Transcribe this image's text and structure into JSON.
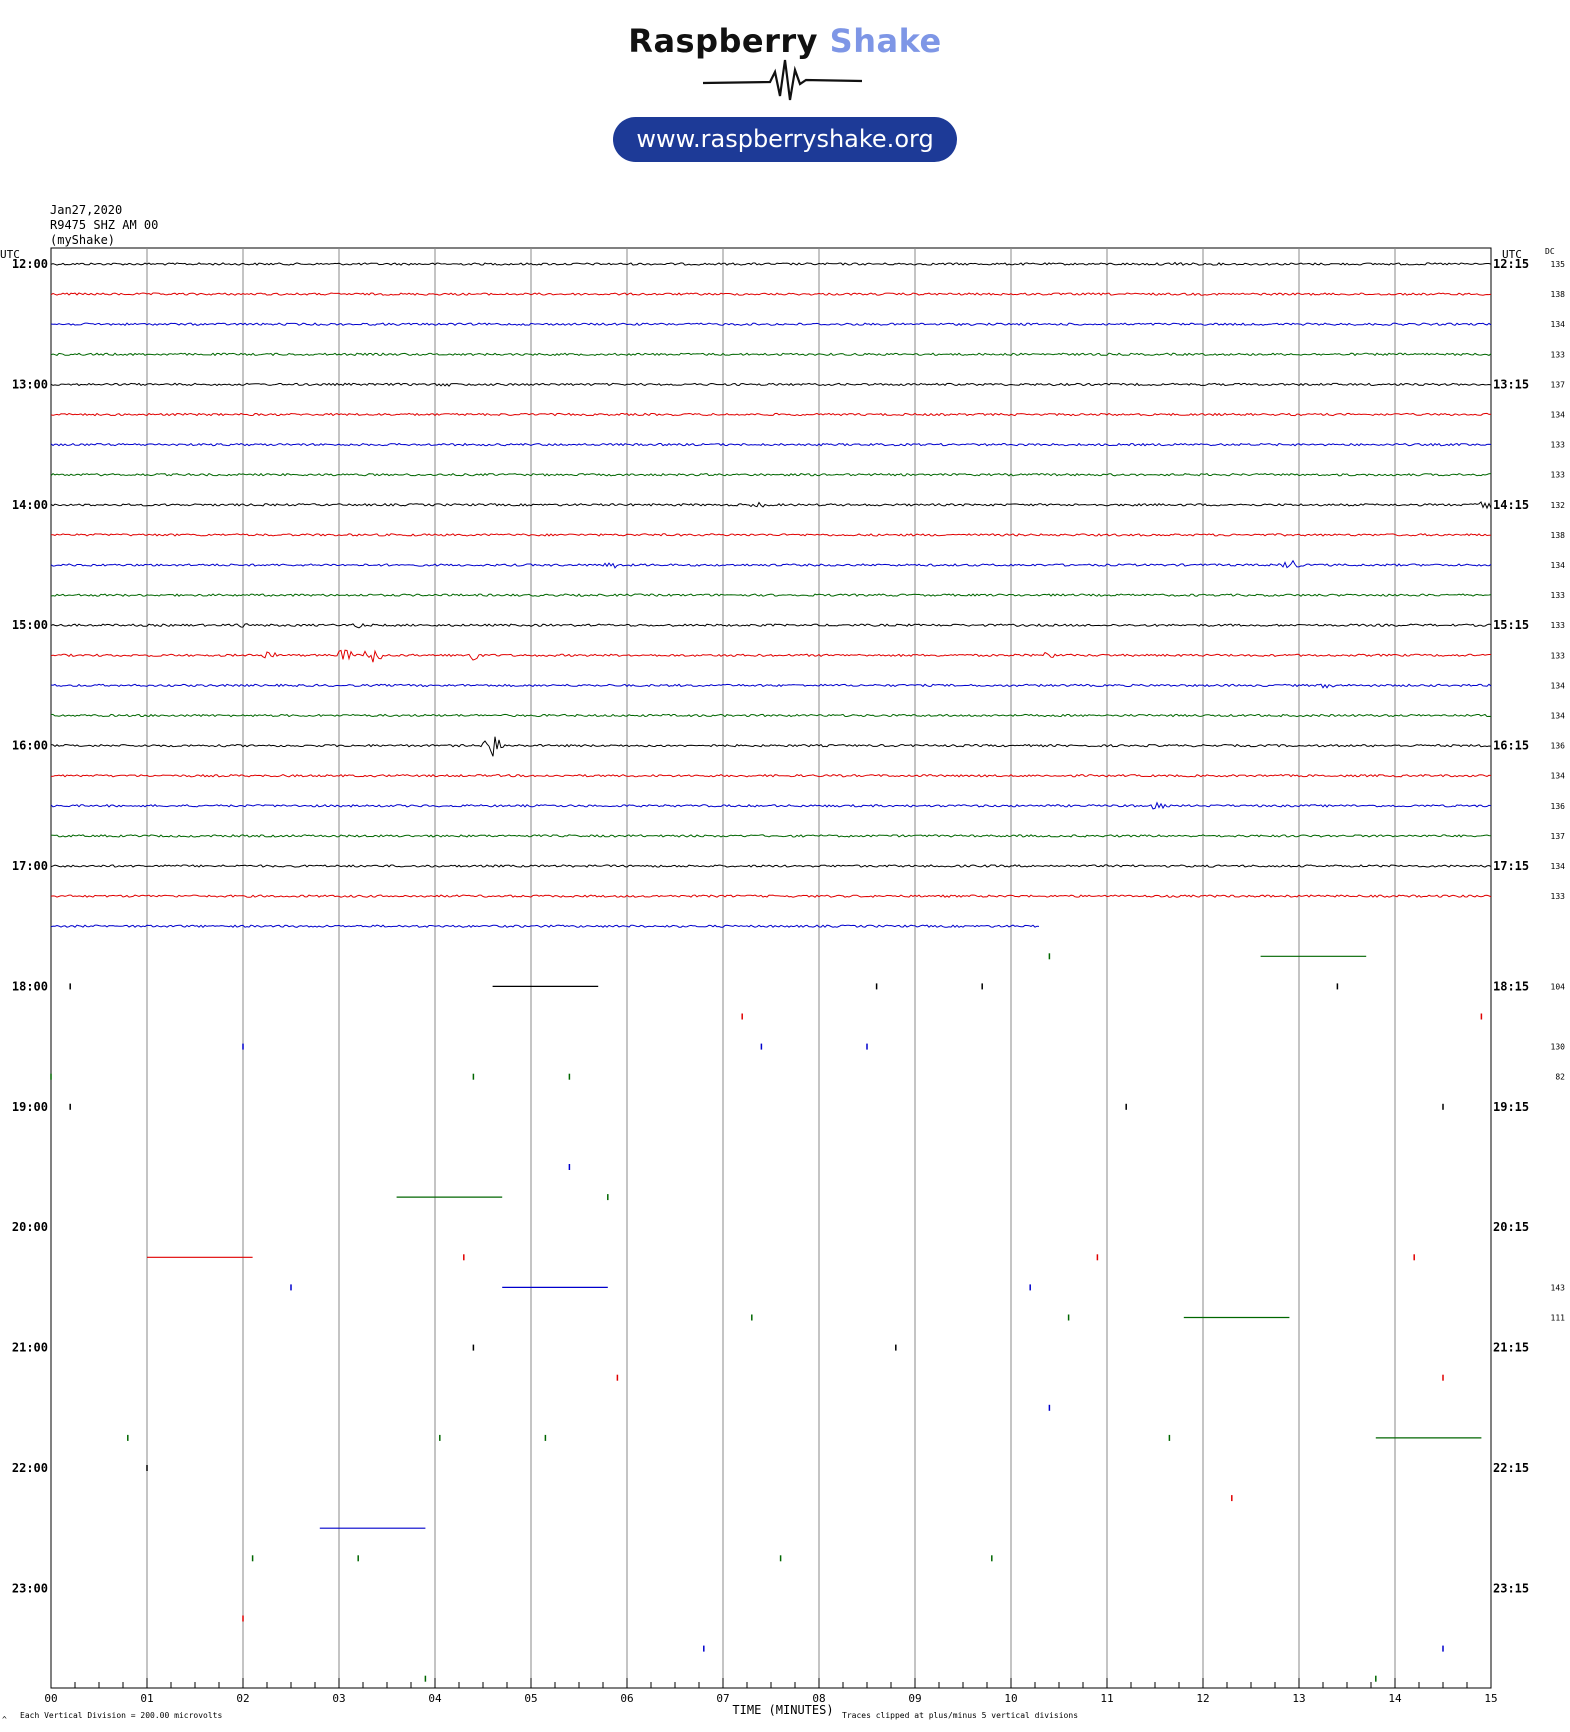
{
  "brand": {
    "name_part1": "Raspberry",
    "name_part2": "Shake",
    "url": "www.raspberryshake.org",
    "colors": {
      "dark": "#111111",
      "accent": "#7e96e6",
      "pill": "#1d3a97"
    }
  },
  "station": {
    "date": "Jan27,2020",
    "channel": "R9475 SHZ AM 00",
    "source": "(myShake)"
  },
  "chart_data": {
    "type": "line",
    "title": "",
    "xlabel": "TIME (MINUTES)",
    "ylabel": "",
    "x_ticks": [
      "00",
      "01",
      "02",
      "03",
      "04",
      "05",
      "06",
      "07",
      "08",
      "09",
      "10",
      "11",
      "12",
      "13",
      "14",
      "15"
    ],
    "xlim": [
      0,
      15
    ],
    "left_axis_title": "UTC",
    "right_axis_title": "UTC",
    "dc_title": "DC",
    "left_hour_labels": [
      "12:00",
      "13:00",
      "14:00",
      "15:00",
      "16:00",
      "17:00",
      "18:00",
      "19:00",
      "20:00",
      "21:00",
      "22:00",
      "23:00"
    ],
    "right_hour_labels": [
      "12:15",
      "13:15",
      "14:15",
      "15:15",
      "16:15",
      "17:15",
      "18:15",
      "19:15",
      "20:15",
      "21:15",
      "22:15",
      "23:15"
    ],
    "row_colors": [
      "#000000",
      "#e00000",
      "#0000cc",
      "#006600"
    ],
    "dc_values": [
      "135",
      "138",
      "134",
      "133",
      "137",
      "134",
      "133",
      "133",
      "132",
      "138",
      "134",
      "133",
      "133",
      "133",
      "134",
      "134",
      "136",
      "134",
      "136",
      "137",
      "134",
      "133",
      "",
      "",
      "104",
      "",
      "130",
      "82",
      "",
      "",
      "",
      "",
      "",
      "",
      "143",
      "111",
      "",
      "",
      "",
      "",
      "",
      ""
    ],
    "traces_complete_rows": 22,
    "partial_row_end_minute": 10.3,
    "events": [
      {
        "row": 0,
        "t": 11.75,
        "amp": 3
      },
      {
        "row": 4,
        "t": 4.1,
        "amp": 2
      },
      {
        "row": 8,
        "t": 7.35,
        "amp": 3
      },
      {
        "row": 8,
        "t": 14.95,
        "amp": 8
      },
      {
        "row": 10,
        "t": 5.85,
        "amp": 4
      },
      {
        "row": 10,
        "t": 12.9,
        "amp": 7
      },
      {
        "row": 12,
        "t": 2.05,
        "amp": 4
      },
      {
        "row": 12,
        "t": 3.2,
        "amp": 3
      },
      {
        "row": 13,
        "t": 2.25,
        "amp": 5
      },
      {
        "row": 13,
        "t": 3.05,
        "amp": 8
      },
      {
        "row": 13,
        "t": 3.35,
        "amp": 14
      },
      {
        "row": 13,
        "t": 4.35,
        "amp": 15
      },
      {
        "row": 13,
        "t": 10.4,
        "amp": 4
      },
      {
        "row": 14,
        "t": 13.3,
        "amp": 3
      },
      {
        "row": 16,
        "t": 4.6,
        "amp": 20
      },
      {
        "row": 18,
        "t": 11.5,
        "amp": 4
      }
    ],
    "scattered_marks": [
      {
        "row": 23,
        "t": 10.4,
        "len": 0
      },
      {
        "row": 23,
        "t": 12.6,
        "len": 1.1
      },
      {
        "row": 24,
        "t": 8.6,
        "len": 0
      },
      {
        "row": 24,
        "t": 9.7,
        "len": 0
      },
      {
        "row": 24,
        "t": 0.2,
        "len": 0
      },
      {
        "row": 24,
        "t": 4.6,
        "len": 1.1
      },
      {
        "row": 24,
        "t": 13.4,
        "len": 0
      },
      {
        "row": 25,
        "t": 7.2,
        "len": 0
      },
      {
        "row": 25,
        "t": 14.9,
        "len": 0
      },
      {
        "row": 26,
        "t": 2.0,
        "len": 0
      },
      {
        "row": 26,
        "t": 7.4,
        "len": 0
      },
      {
        "row": 26,
        "t": 8.5,
        "len": 0
      },
      {
        "row": 27,
        "t": 0.0,
        "len": 0
      },
      {
        "row": 27,
        "t": 4.4,
        "len": 0
      },
      {
        "row": 27,
        "t": 5.4,
        "len": 0
      },
      {
        "row": 28,
        "t": 0.2,
        "len": 0
      },
      {
        "row": 28,
        "t": 11.2,
        "len": 0
      },
      {
        "row": 28,
        "t": 14.5,
        "len": 0
      },
      {
        "row": 30,
        "t": 5.4,
        "len": 0
      },
      {
        "row": 31,
        "t": 3.6,
        "len": 1.1
      },
      {
        "row": 31,
        "t": 5.8,
        "len": 0
      },
      {
        "row": 33,
        "t": 1.0,
        "len": 1.1
      },
      {
        "row": 33,
        "t": 4.3,
        "len": 0
      },
      {
        "row": 33,
        "t": 10.9,
        "len": 0
      },
      {
        "row": 33,
        "t": 14.2,
        "len": 0
      },
      {
        "row": 34,
        "t": 2.5,
        "len": 0
      },
      {
        "row": 34,
        "t": 4.7,
        "len": 1.1
      },
      {
        "row": 34,
        "t": 10.2,
        "len": 0
      },
      {
        "row": 35,
        "t": 7.3,
        "len": 0
      },
      {
        "row": 35,
        "t": 10.6,
        "len": 0
      },
      {
        "row": 35,
        "t": 11.8,
        "len": 1.1
      },
      {
        "row": 36,
        "t": 4.4,
        "len": 0
      },
      {
        "row": 36,
        "t": 8.8,
        "len": 0
      },
      {
        "row": 37,
        "t": 5.9,
        "len": 0
      },
      {
        "row": 37,
        "t": 14.5,
        "len": 0
      },
      {
        "row": 38,
        "t": 10.4,
        "len": 0
      },
      {
        "row": 39,
        "t": 0.8,
        "len": 0
      },
      {
        "row": 39,
        "t": 4.05,
        "len": 0
      },
      {
        "row": 39,
        "t": 5.15,
        "len": 0
      },
      {
        "row": 39,
        "t": 11.65,
        "len": 0
      },
      {
        "row": 39,
        "t": 13.8,
        "len": 1.1
      },
      {
        "row": 40,
        "t": 1.0,
        "len": 0
      },
      {
        "row": 41,
        "t": 12.3,
        "len": 0
      },
      {
        "row": 42,
        "t": 2.8,
        "len": 1.1
      },
      {
        "row": 43,
        "t": 2.1,
        "len": 0
      },
      {
        "row": 43,
        "t": 3.2,
        "len": 0
      },
      {
        "row": 43,
        "t": 7.6,
        "len": 0
      },
      {
        "row": 43,
        "t": 9.8,
        "len": 0
      },
      {
        "row": 45,
        "t": 2.0,
        "len": 0
      },
      {
        "row": 46,
        "t": 6.8,
        "len": 0
      },
      {
        "row": 46,
        "t": 14.5,
        "len": 0
      },
      {
        "row": 47,
        "t": 3.9,
        "len": 0
      },
      {
        "row": 47,
        "t": 13.8,
        "len": 0
      }
    ]
  },
  "footer": {
    "division_note": "Each Vertical Division =  200.00 microvolts",
    "clip_note": "Traces clipped at plus/minus 5 vertical divisions",
    "corner_mark": "^"
  }
}
